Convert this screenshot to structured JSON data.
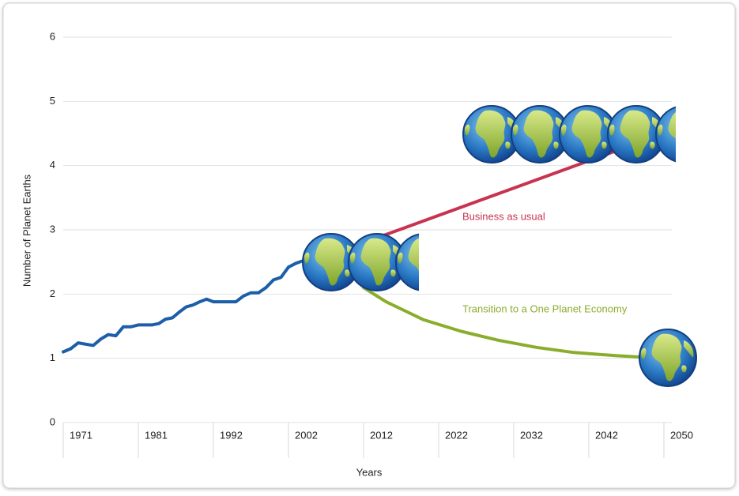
{
  "chart_data": {
    "type": "line",
    "y_label": "Number of Planet Earths",
    "x_label": "Years",
    "ylim": [
      0,
      6
    ],
    "yticks": [
      0,
      1,
      2,
      3,
      4,
      5,
      6
    ],
    "xlim": [
      1971,
      2050
    ],
    "xticks": [
      1971,
      1981,
      1992,
      2002,
      2012,
      2022,
      2032,
      2042,
      2050
    ],
    "grid": true,
    "series": [
      {
        "color": "#1d5ea8",
        "x": [
          1971,
          1972,
          1973,
          1974,
          1975,
          1976,
          1977,
          1978,
          1979,
          1980,
          1981,
          1982,
          1983,
          1984,
          1985,
          1986,
          1987,
          1988,
          1989,
          1990,
          1991,
          1992,
          1993,
          1994,
          1995,
          1996,
          1997,
          1998,
          1999,
          2000,
          2001,
          2002,
          2003,
          2004,
          2005
        ],
        "values": [
          1.1,
          1.15,
          1.24,
          1.22,
          1.2,
          1.3,
          1.37,
          1.35,
          1.49,
          1.49,
          1.52,
          1.52,
          1.52,
          1.54,
          1.61,
          1.63,
          1.72,
          1.8,
          1.83,
          1.88,
          1.92,
          1.88,
          1.88,
          1.88,
          1.88,
          1.97,
          2.02,
          2.02,
          2.1,
          2.22,
          2.26,
          2.42,
          2.48,
          2.52,
          2.6
        ]
      },
      {
        "name": "Business as usual",
        "color": "#c8334f",
        "x": [
          2012,
          2050
        ],
        "values": [
          2.8,
          4.5
        ]
      },
      {
        "name": "Transition to a One Planet Economy",
        "color": "#8aad2c",
        "x": [
          2012,
          2015,
          2020,
          2025,
          2030,
          2035,
          2040,
          2045,
          2050
        ],
        "values": [
          2.1,
          1.88,
          1.6,
          1.42,
          1.28,
          1.17,
          1.09,
          1.04,
          1.0
        ]
      }
    ]
  }
}
